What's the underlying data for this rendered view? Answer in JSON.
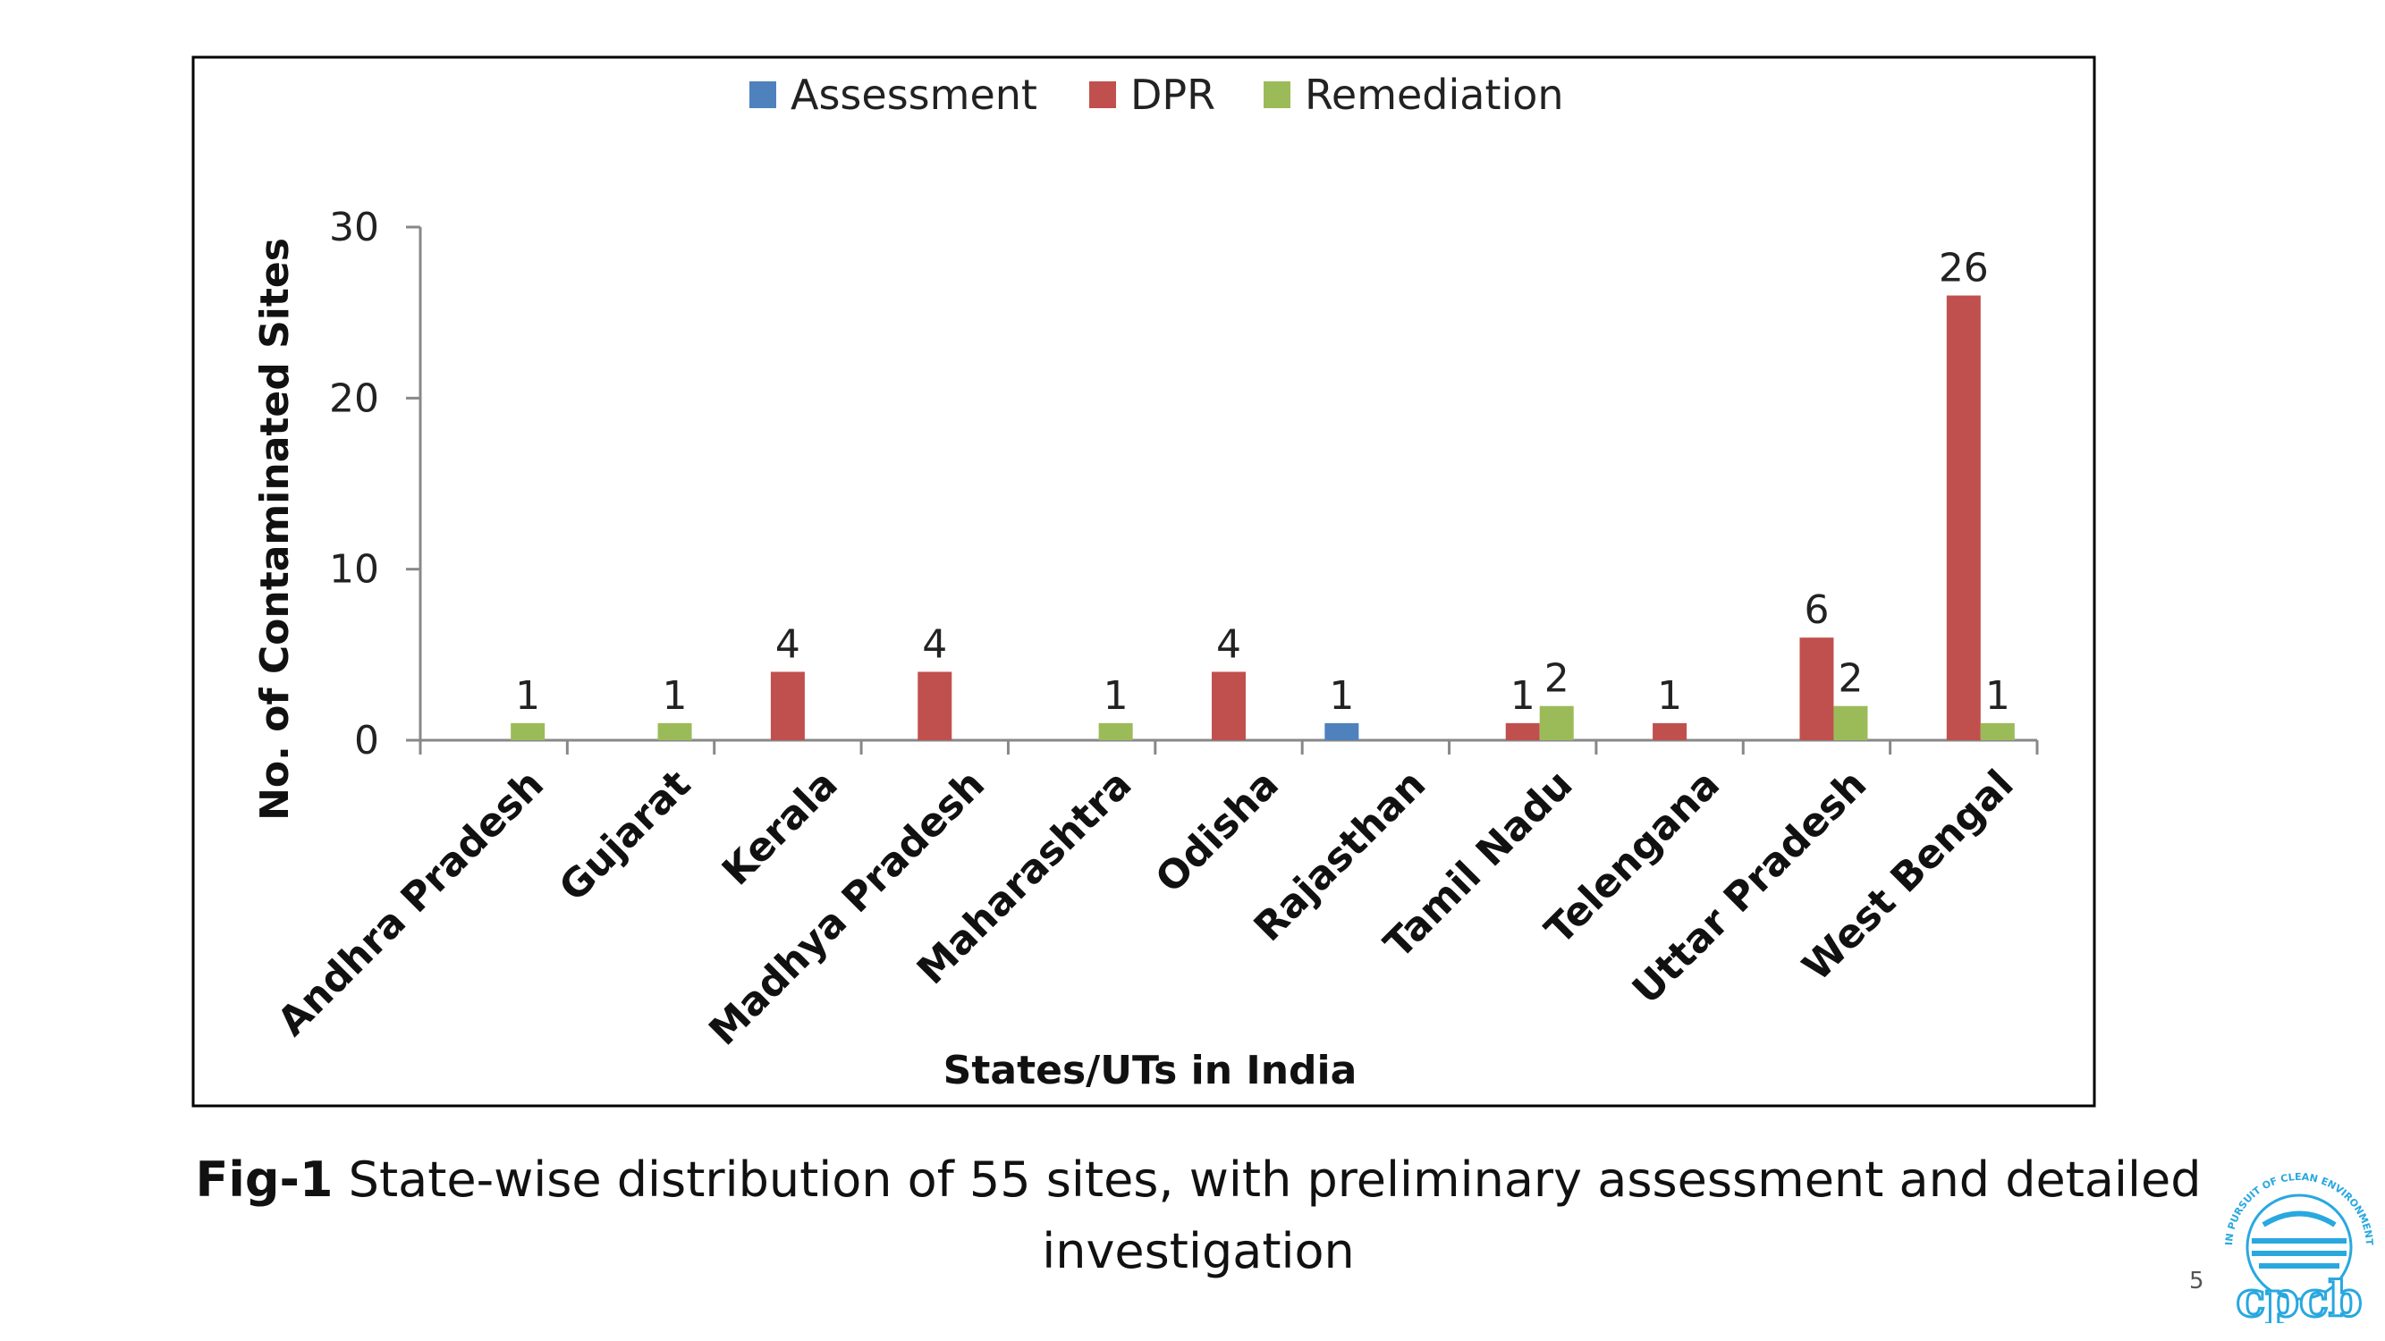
{
  "chart_data": {
    "type": "bar",
    "categories": [
      "Andhra Pradesh",
      "Gujarat",
      "Kerala",
      "Madhya Pradesh",
      "Maharashtra",
      "Odisha",
      "Rajasthan",
      "Tamil Nadu",
      "Telengana",
      "Uttar Pradesh",
      "West Bengal"
    ],
    "series": [
      {
        "name": "Assessment",
        "color": "#4F81BD",
        "values": [
          null,
          null,
          null,
          null,
          null,
          null,
          1,
          null,
          null,
          null,
          null
        ]
      },
      {
        "name": "DPR",
        "color": "#C0504D",
        "values": [
          null,
          null,
          4,
          4,
          null,
          4,
          null,
          1,
          1,
          6,
          26
        ]
      },
      {
        "name": "Remediation",
        "color": "#9BBB59",
        "values": [
          1,
          1,
          null,
          null,
          1,
          null,
          null,
          2,
          null,
          2,
          1
        ]
      }
    ],
    "xlabel": "States/UTs in India",
    "ylabel": "No. of Contaminated Sites",
    "ylim": [
      0,
      30
    ],
    "yticks": [
      0,
      10,
      20,
      30
    ],
    "legend_position": "top",
    "grid": false,
    "data_labels": true
  },
  "caption": {
    "prefix": "Fig-1",
    "text": " State-wise distribution of 55 sites, with preliminary assessment and detailed investigation"
  },
  "page_number": "5",
  "logo": {
    "text": "cpcb",
    "motto": "IN PURSUIT OF CLEAN ENVIRONMENT",
    "color": "#29A8E0"
  }
}
